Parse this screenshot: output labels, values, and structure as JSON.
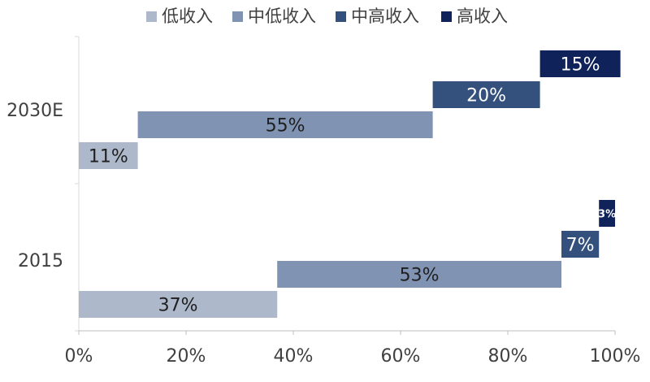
{
  "chart_data": {
    "type": "bar",
    "orientation": "horizontal",
    "layout": "waterfall-stacked",
    "categories": [
      "2030E",
      "2015"
    ],
    "series": [
      {
        "name": "低收入",
        "color": "#adb9ca",
        "values": [
          11,
          37
        ],
        "labels": [
          "11%",
          "37%"
        ]
      },
      {
        "name": "中低收入",
        "color": "#8093b3",
        "values": [
          55,
          53
        ],
        "labels": [
          "55%",
          "53%"
        ]
      },
      {
        "name": "中高收入",
        "color": "#34507c",
        "values": [
          20,
          7
        ],
        "labels": [
          "20%",
          "7%"
        ]
      },
      {
        "name": "高收入",
        "color": "#0f2259",
        "values": [
          15,
          3
        ],
        "labels": [
          "15%",
          "3%"
        ]
      }
    ],
    "xlim": [
      0,
      100
    ],
    "x_ticks": [
      "0%",
      "20%",
      "40%",
      "60%",
      "80%",
      "100%"
    ],
    "legend_position": "top",
    "grid": false
  }
}
